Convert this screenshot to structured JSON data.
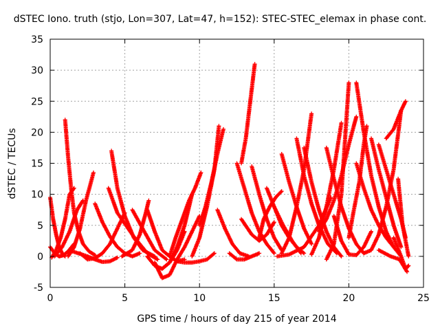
{
  "chart_data": {
    "type": "scatter",
    "title": "dSTEC Iono. truth (stjo, Lon=307, Lat=47, h=152): STEC-STEC_elemax in phase cont.",
    "xlabel": "GPS time / hours of day 215 of year 2014",
    "ylabel": "dSTEC  / TECUs",
    "xlim": [
      0,
      25
    ],
    "ylim": [
      -5,
      35
    ],
    "xticks": [
      0,
      5,
      10,
      15,
      20,
      25
    ],
    "yticks": [
      -5,
      0,
      5,
      10,
      15,
      20,
      25,
      30,
      35
    ],
    "grid": true,
    "marker": "+",
    "color": "#ff0000",
    "arcs": [
      {
        "x": [
          0.0,
          0.2,
          0.4,
          0.6,
          0.8,
          1.0
        ],
        "y": [
          9.5,
          6.0,
          3.5,
          1.5,
          0.5,
          0.0
        ]
      },
      {
        "x": [
          0.0,
          0.3,
          0.6,
          0.9,
          1.2,
          1.6
        ],
        "y": [
          1.5,
          0.5,
          0.0,
          0.2,
          0.8,
          2.0
        ]
      },
      {
        "x": [
          0.1,
          0.4,
          0.7,
          1.0,
          1.3,
          1.6
        ],
        "y": [
          -0.2,
          1.0,
          3.0,
          6.0,
          10.0,
          11.0
        ]
      },
      {
        "x": [
          1.0,
          1.2,
          1.4,
          1.6,
          1.9,
          2.2,
          2.6,
          3.0
        ],
        "y": [
          22.0,
          16.0,
          11.0,
          7.0,
          4.0,
          2.0,
          0.8,
          0.2
        ]
      },
      {
        "x": [
          0.3,
          0.8,
          1.3,
          1.8,
          2.2
        ],
        "y": [
          0.0,
          1.5,
          4.0,
          7.5,
          9.0
        ]
      },
      {
        "x": [
          1.2,
          1.6,
          2.0,
          2.4,
          2.9
        ],
        "y": [
          0.0,
          1.5,
          4.5,
          9.0,
          13.5
        ]
      },
      {
        "x": [
          2.0,
          2.5,
          3.0,
          3.5,
          4.0,
          4.5,
          5.0
        ],
        "y": [
          0.5,
          -0.5,
          -0.3,
          0.5,
          2.0,
          4.5,
          7.0
        ]
      },
      {
        "x": [
          1.5,
          2.5,
          3.0,
          3.5,
          4.0,
          4.5
        ],
        "y": [
          0.8,
          0.0,
          -0.5,
          -0.9,
          -0.8,
          -0.2
        ]
      },
      {
        "x": [
          3.0,
          3.5,
          4.0,
          4.5,
          5.0,
          5.5,
          6.0
        ],
        "y": [
          8.5,
          5.5,
          3.2,
          1.5,
          0.5,
          0.0,
          0.5
        ]
      },
      {
        "x": [
          4.1,
          4.5,
          5.0,
          5.6,
          6.2,
          7.0
        ],
        "y": [
          17.0,
          11.0,
          6.5,
          3.0,
          1.0,
          0.0
        ]
      },
      {
        "x": [
          3.9,
          4.5,
          5.5,
          6.5,
          7.2
        ],
        "y": [
          11.0,
          7.0,
          3.5,
          0.5,
          -0.5
        ]
      },
      {
        "x": [
          4.8,
          5.5,
          6.0,
          6.4,
          6.6
        ],
        "y": [
          0.0,
          1.0,
          3.5,
          7.0,
          9.0
        ]
      },
      {
        "x": [
          5.5,
          6.3,
          7.0,
          7.8
        ],
        "y": [
          7.5,
          4.0,
          1.0,
          -0.5
        ]
      },
      {
        "x": [
          6.5,
          7.0,
          7.5,
          8.0,
          8.5,
          9.0
        ],
        "y": [
          7.5,
          4.0,
          1.0,
          0.0,
          -0.8,
          -0.5
        ]
      },
      {
        "x": [
          6.5,
          7.0,
          7.5,
          8.0,
          8.5,
          9.0
        ],
        "y": [
          0.0,
          -1.5,
          -2.0,
          -1.0,
          1.0,
          4.0
        ]
      },
      {
        "x": [
          7.0,
          7.5,
          8.0,
          8.5,
          9.0,
          9.5,
          10.0
        ],
        "y": [
          -1.0,
          -3.5,
          -3.0,
          -0.5,
          1.5,
          4.0,
          6.5
        ]
      },
      {
        "x": [
          7.5,
          8.0,
          8.5,
          9.0,
          9.5
        ],
        "y": [
          -2.0,
          -1.0,
          1.5,
          5.0,
          10.0
        ]
      },
      {
        "x": [
          8.0,
          8.4,
          8.7,
          9.0,
          9.3,
          9.7,
          10.1
        ],
        "y": [
          0.0,
          3.0,
          5.0,
          7.0,
          9.0,
          11.0,
          13.5
        ]
      },
      {
        "x": [
          8.5,
          9.0,
          9.5,
          10.0,
          10.5,
          11.0
        ],
        "y": [
          -0.8,
          -1.0,
          -1.0,
          -0.8,
          -0.5,
          0.5
        ]
      },
      {
        "x": [
          9.5,
          10.0,
          10.5,
          11.0,
          11.3
        ],
        "y": [
          0.0,
          3.0,
          8.0,
          14.0,
          21.0
        ]
      },
      {
        "x": [
          10.0,
          10.4,
          10.8,
          11.2,
          11.6
        ],
        "y": [
          5.0,
          8.0,
          12.0,
          16.5,
          20.5
        ]
      },
      {
        "x": [
          11.2,
          11.7,
          12.2,
          12.7,
          13.3
        ],
        "y": [
          7.5,
          4.5,
          2.0,
          0.5,
          0.0
        ]
      },
      {
        "x": [
          12.0,
          12.5,
          13.0,
          13.5,
          14.0
        ],
        "y": [
          0.5,
          -0.5,
          -0.5,
          0.0,
          0.5
        ]
      },
      {
        "x": [
          12.8,
          13.1,
          13.4,
          13.7
        ],
        "y": [
          15.0,
          19.0,
          25.0,
          31.0
        ]
      },
      {
        "x": [
          12.5,
          13.0,
          13.5,
          14.0,
          14.5,
          15.0
        ],
        "y": [
          15.0,
          11.0,
          7.0,
          4.0,
          2.0,
          0.5
        ]
      },
      {
        "x": [
          13.5,
          14.0,
          14.5,
          15.0,
          15.5
        ],
        "y": [
          14.5,
          10.0,
          6.0,
          3.0,
          1.0
        ]
      },
      {
        "x": [
          12.8,
          13.5,
          14.0,
          14.5,
          15.0
        ],
        "y": [
          6.0,
          3.5,
          2.5,
          3.5,
          5.5
        ]
      },
      {
        "x": [
          14.0,
          14.3,
          14.7,
          15.1,
          15.5
        ],
        "y": [
          3.0,
          6.0,
          8.0,
          9.5,
          10.5
        ]
      },
      {
        "x": [
          14.5,
          15.0,
          15.6,
          16.2,
          16.8
        ],
        "y": [
          11.0,
          8.0,
          5.0,
          2.5,
          0.5
        ]
      },
      {
        "x": [
          15.0,
          15.5,
          16.0,
          16.5,
          17.0
        ],
        "y": [
          8.0,
          5.0,
          3.0,
          1.5,
          0.5
        ]
      },
      {
        "x": [
          15.5,
          16.0,
          16.5,
          17.0,
          17.5
        ],
        "y": [
          0.5,
          3.0,
          8.0,
          14.0,
          23.0
        ]
      },
      {
        "x": [
          15.5,
          16.0,
          16.5,
          17.0,
          17.5
        ],
        "y": [
          16.5,
          12.0,
          8.0,
          4.5,
          2.0
        ]
      },
      {
        "x": [
          15.2,
          16.0,
          17.0,
          18.0,
          18.8
        ],
        "y": [
          0.0,
          0.3,
          1.5,
          5.0,
          9.5
        ]
      },
      {
        "x": [
          16.5,
          17.0,
          17.5,
          18.0,
          18.6,
          19.2
        ],
        "y": [
          19.0,
          13.0,
          8.5,
          5.0,
          2.0,
          0.5
        ]
      },
      {
        "x": [
          17.0,
          17.5,
          18.0,
          18.5,
          19.0,
          19.5
        ],
        "y": [
          17.5,
          12.0,
          7.5,
          4.0,
          1.5,
          0.0
        ]
      },
      {
        "x": [
          17.5,
          18.0,
          18.5,
          19.0,
          19.5
        ],
        "y": [
          0.3,
          3.0,
          8.0,
          14.0,
          21.5
        ]
      },
      {
        "x": [
          18.5,
          19.0,
          19.5,
          20.0,
          20.5,
          21.0
        ],
        "y": [
          17.5,
          12.5,
          8.0,
          4.5,
          2.0,
          0.5
        ]
      },
      {
        "x": [
          18.0,
          18.5,
          19.0,
          19.5,
          20.0,
          20.5
        ],
        "y": [
          4.0,
          6.0,
          9.0,
          13.0,
          18.0,
          22.5
        ]
      },
      {
        "x": [
          18.5,
          19.0,
          19.5,
          20.0
        ],
        "y": [
          -0.5,
          2.0,
          10.0,
          28.0
        ]
      },
      {
        "x": [
          19.0,
          19.5,
          20.0,
          20.5,
          21.0,
          21.5
        ],
        "y": [
          6.5,
          2.5,
          0.3,
          0.2,
          1.5,
          4.0
        ]
      },
      {
        "x": [
          20.0,
          20.3,
          20.7,
          21.0,
          21.2
        ],
        "y": [
          3.0,
          7.0,
          12.0,
          18.0,
          21.0
        ]
      },
      {
        "x": [
          20.5,
          21.0,
          21.5,
          22.0,
          22.5,
          23.0
        ],
        "y": [
          28.0,
          20.0,
          13.0,
          8.0,
          4.0,
          1.5
        ]
      },
      {
        "x": [
          20.5,
          21.0,
          21.5,
          22.0,
          22.5,
          23.0,
          23.5
        ],
        "y": [
          15.0,
          11.0,
          7.5,
          5.0,
          3.0,
          1.5,
          0.0
        ]
      },
      {
        "x": [
          21.0,
          21.5,
          22.0,
          22.5,
          23.0,
          23.5
        ],
        "y": [
          0.5,
          1.0,
          3.5,
          8.0,
          14.0,
          23.5
        ]
      },
      {
        "x": [
          21.5,
          22.0,
          22.5,
          23.0,
          23.5
        ],
        "y": [
          19.0,
          14.0,
          9.5,
          5.0,
          1.5
        ]
      },
      {
        "x": [
          22.0,
          22.5,
          23.0,
          23.5,
          23.8
        ],
        "y": [
          18.0,
          14.0,
          10.0,
          6.0,
          3.0
        ]
      },
      {
        "x": [
          22.5,
          23.0,
          23.5,
          23.8
        ],
        "y": [
          19.0,
          20.5,
          23.5,
          25.0
        ]
      },
      {
        "x": [
          23.3,
          23.6,
          24.0
        ],
        "y": [
          12.5,
          5.0,
          0.0
        ]
      },
      {
        "x": [
          23.0,
          23.5,
          23.8,
          24.0
        ],
        "y": [
          3.0,
          0.0,
          -2.0,
          -1.5
        ]
      },
      {
        "x": [
          22.0,
          22.8,
          23.4,
          23.9
        ],
        "y": [
          1.0,
          0.0,
          -0.5,
          -2.5
        ]
      }
    ]
  }
}
